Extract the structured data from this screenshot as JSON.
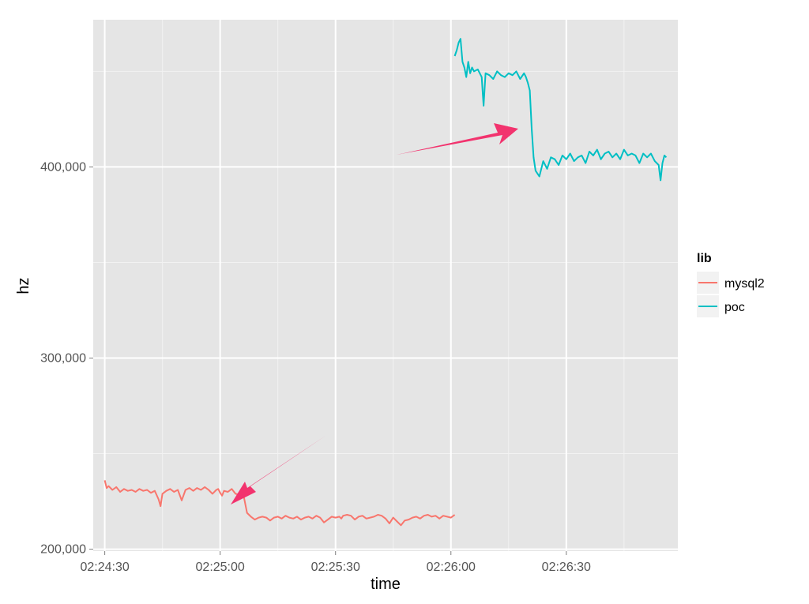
{
  "chart_data": {
    "type": "line",
    "xlabel": "time",
    "ylabel": "hz",
    "x_ticks": [
      "02:24:30",
      "02:25:00",
      "02:25:30",
      "02:26:00",
      "02:26:30"
    ],
    "y_ticks": [
      "200,000",
      "300,000",
      "400,000"
    ],
    "xlim": [
      -3,
      149
    ],
    "ylim": [
      199000,
      477000
    ],
    "grid": true,
    "legend": {
      "title": "lib",
      "placement": "right"
    },
    "series": [
      {
        "name": "mysql2",
        "color": "#F8766D",
        "x": [
          0,
          0.5,
          1,
          2,
          3,
          4,
          5,
          6,
          7,
          8,
          9,
          10,
          11,
          12,
          13,
          14,
          14.5,
          15,
          16,
          17,
          18,
          19,
          20,
          21,
          22,
          23,
          24,
          25,
          26,
          27,
          28,
          29,
          29.5,
          30,
          30.5,
          31,
          32,
          33,
          34,
          35,
          36,
          37,
          38,
          39,
          40,
          41,
          42,
          43,
          44,
          45,
          46,
          47,
          48,
          49,
          50,
          51,
          52,
          53,
          54,
          55,
          56,
          57,
          58,
          59,
          60,
          61,
          61.5,
          62,
          63,
          64,
          65,
          66,
          67,
          68,
          69,
          70,
          71,
          72,
          73,
          74,
          75,
          76,
          77,
          78,
          79,
          80,
          81,
          82,
          83,
          84,
          85,
          86,
          87,
          88,
          89,
          90,
          91
        ],
        "values": [
          236000,
          232000,
          233000,
          231000,
          232500,
          230000,
          231500,
          230500,
          231000,
          230000,
          231500,
          230500,
          231000,
          229500,
          230500,
          226000,
          222500,
          229000,
          230500,
          231500,
          230000,
          231000,
          225500,
          231000,
          232000,
          230500,
          232000,
          231000,
          232500,
          231000,
          229000,
          231000,
          231500,
          229500,
          228000,
          230500,
          230000,
          231500,
          229000,
          228500,
          229000,
          219000,
          217000,
          215500,
          216500,
          217000,
          216500,
          215000,
          216500,
          217000,
          216000,
          217500,
          216500,
          216000,
          217000,
          215500,
          216500,
          217000,
          216000,
          217500,
          216500,
          214000,
          215500,
          217000,
          216500,
          217000,
          216000,
          217500,
          218000,
          217500,
          215500,
          217000,
          217500,
          216000,
          216500,
          217000,
          218000,
          217500,
          216000,
          213500,
          216500,
          214500,
          212500,
          215000,
          215500,
          216500,
          217000,
          216000,
          217500,
          218000,
          217000,
          217500,
          216000,
          217500,
          217000,
          216500,
          218000
        ]
      },
      {
        "name": "poc",
        "color": "#00BFC4",
        "x": [
          91,
          91.5,
          92,
          92.5,
          93,
          93.5,
          94,
          94.5,
          95,
          95.5,
          96,
          97,
          98,
          98.5,
          99,
          100,
          101,
          102,
          103,
          104,
          105,
          106,
          107,
          108,
          109,
          109.5,
          110,
          110.5,
          111,
          111.5,
          112,
          113,
          114,
          115,
          116,
          117,
          118,
          119,
          120,
          121,
          122,
          123,
          124,
          125,
          126,
          127,
          128,
          129,
          130,
          131,
          132,
          133,
          134,
          135,
          136,
          137,
          138,
          139,
          140,
          141,
          142,
          143,
          144,
          144.5,
          145,
          145.5,
          146
        ],
        "values": [
          458000,
          461000,
          465000,
          467000,
          455000,
          452000,
          447000,
          455000,
          449000,
          452000,
          450000,
          451000,
          447000,
          432000,
          449000,
          448000,
          446000,
          450000,
          448000,
          447000,
          449000,
          448000,
          450000,
          446000,
          449000,
          447000,
          444000,
          440000,
          420000,
          405000,
          398000,
          395000,
          403000,
          399000,
          405000,
          404000,
          401000,
          406000,
          404000,
          407000,
          403000,
          405000,
          406000,
          402000,
          408000,
          406000,
          409000,
          404000,
          407000,
          408000,
          405000,
          407000,
          404000,
          409000,
          406000,
          407000,
          406000,
          402000,
          407000,
          405000,
          407000,
          403000,
          401000,
          393000,
          402000,
          406000,
          405000
        ]
      }
    ]
  }
}
